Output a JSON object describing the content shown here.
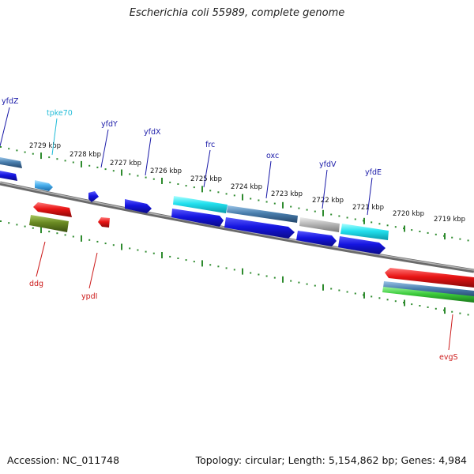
{
  "title": "Escherichia coli 55989, complete genome",
  "footer": {
    "accession": "Accession: NC_011748",
    "topology": "Topology: circular; Length: 5,154,862 bp; Genes: 4,984"
  },
  "colors": {
    "backbone": "#8a8a8a",
    "tick": "#2e8b2e",
    "label_blue": "#1a1aa8",
    "label_red": "#cc1a1a",
    "label_cyan": "#22bcd8",
    "feature_blue": "#1515e0",
    "feature_red": "#e81414",
    "feature_cyan": "#22e0ee",
    "feature_steel": "#4a7fae",
    "feature_gray": "#b8b8b8",
    "feature_olive": "#6a8a22",
    "feature_green": "#3ccc3c",
    "feature_lightblue": "#4ab0ee"
  },
  "scale_labels": [
    {
      "text": "2729 kbp"
    },
    {
      "text": "2728 kbp"
    },
    {
      "text": "2727 kbp"
    },
    {
      "text": "2726 kbp"
    },
    {
      "text": "2725 kbp"
    },
    {
      "text": "2724 kbp"
    },
    {
      "text": "2723 kbp"
    },
    {
      "text": "2722 kbp"
    },
    {
      "text": "2721 kbp"
    },
    {
      "text": "2720 kbp"
    },
    {
      "text": "2719 kbp"
    }
  ],
  "gene_labels": [
    {
      "text": "yfdZ",
      "color": "label_blue"
    },
    {
      "text": "tpke70",
      "color": "label_cyan"
    },
    {
      "text": "yfdY",
      "color": "label_blue"
    },
    {
      "text": "yfdX",
      "color": "label_blue"
    },
    {
      "text": "frc",
      "color": "label_blue"
    },
    {
      "text": "oxc",
      "color": "label_blue"
    },
    {
      "text": "yfdV",
      "color": "label_blue"
    },
    {
      "text": "yfdE",
      "color": "label_blue"
    },
    {
      "text": "ddg",
      "color": "label_red"
    },
    {
      "text": "ypdI",
      "color": "label_red"
    },
    {
      "text": "evgS",
      "color": "label_red"
    }
  ]
}
